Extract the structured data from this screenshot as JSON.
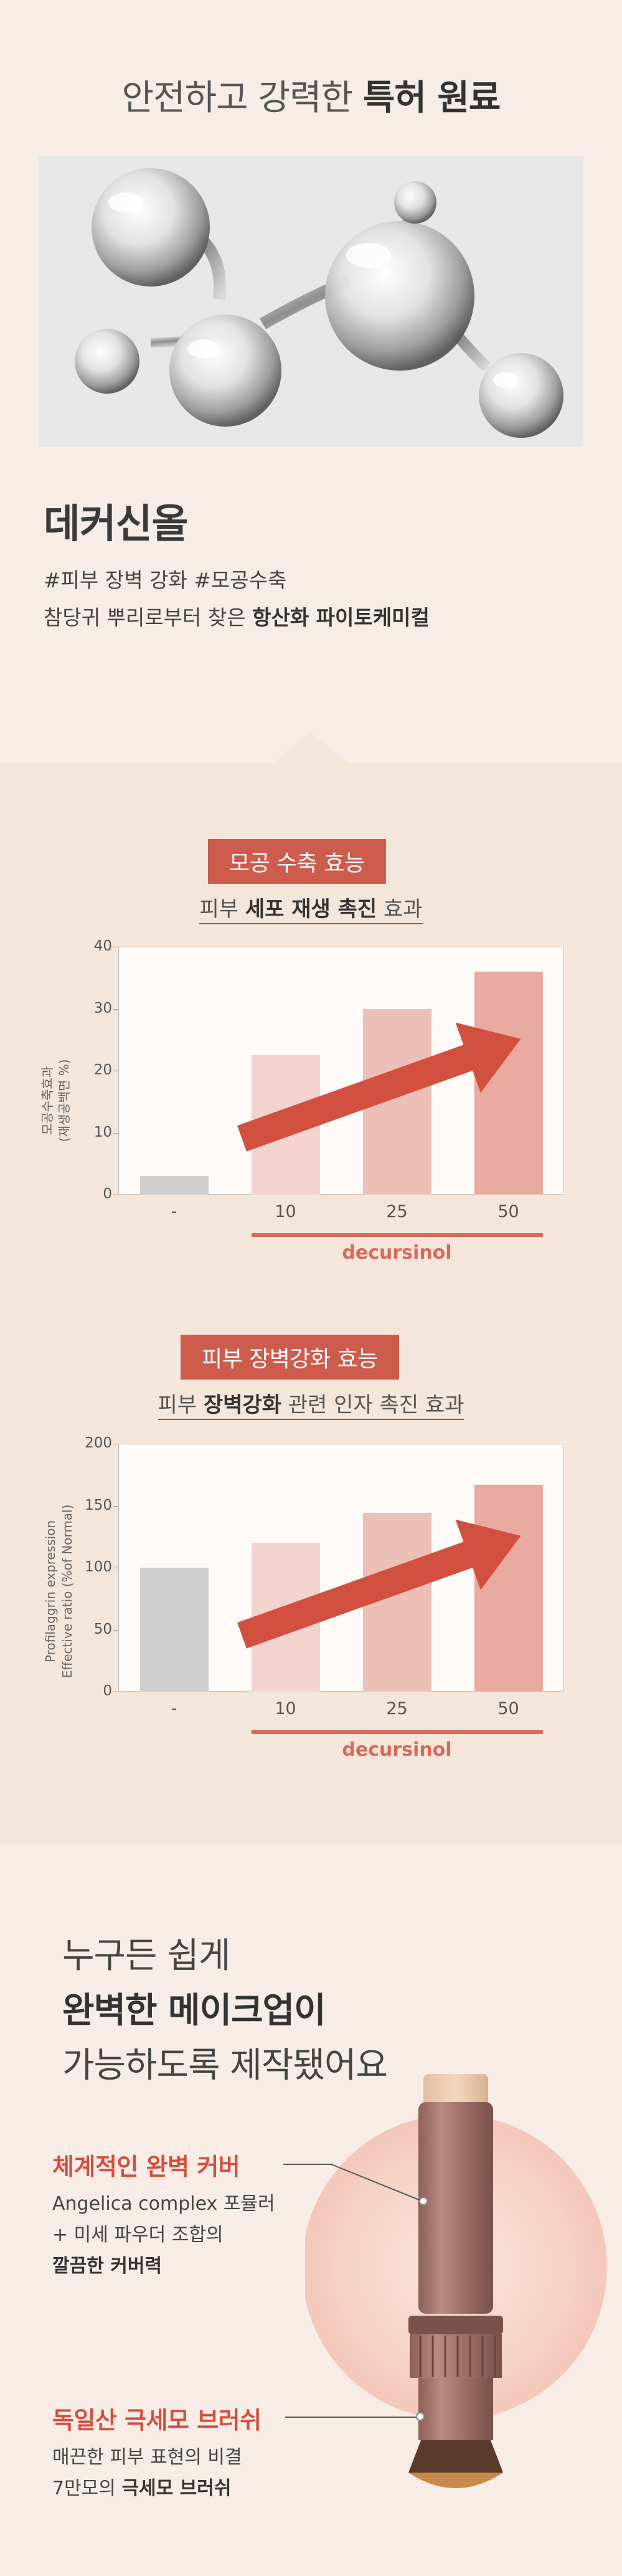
{
  "section1": {
    "title_pre": "안전하고 강력한",
    "title_bold": "특허 원료",
    "ingredient_name": "데커신올",
    "tags": "#피부 장벽 강화 #모공수축",
    "desc_pre": "참당귀 뿌리로부터 찾은",
    "desc_bold": "항산화 파이토케미컬"
  },
  "chart1": {
    "badge": "모공 수축 효능",
    "subtitle_pre": "피부",
    "subtitle_bold": "세포 재생 촉진",
    "subtitle_post": "효과",
    "ylabel_line1": "모공수축효과",
    "ylabel_line2": "(재생공백면 %)",
    "series_label": "decursinol"
  },
  "chart2": {
    "badge": "피부 장벽강화 효능",
    "subtitle_pre": "피부",
    "subtitle_bold": "장벽강화",
    "subtitle_post": "관련 인자 촉진 효과",
    "ylabel_line1": "Profilaggrin expression",
    "ylabel_line2": "Effective ratio (%of Normal)",
    "series_label": "decursinol"
  },
  "chart_data": [
    {
      "type": "bar",
      "title": "모공 수축 효능",
      "ylabel": "모공수축효과 (재생공백면 %)",
      "xlabel": "decursinol",
      "categories": [
        "-",
        "10",
        "25",
        "50"
      ],
      "values": [
        3,
        22.5,
        30,
        36
      ],
      "ylim": [
        0,
        40
      ],
      "yticks": [
        0,
        10,
        20,
        30,
        40
      ],
      "colors": [
        "#cfcfcf",
        "#f2d3ce",
        "#ecbfb7",
        "#e8aaa0"
      ],
      "grid": false
    },
    {
      "type": "bar",
      "title": "피부 장벽강화 효능",
      "ylabel": "Profilaggrin expression Effective ratio (%of Normal)",
      "xlabel": "decursinol",
      "categories": [
        "-",
        "10",
        "25",
        "50"
      ],
      "values": [
        100,
        120,
        144,
        167
      ],
      "ylim": [
        0,
        200
      ],
      "yticks": [
        0,
        50,
        100,
        150,
        200
      ],
      "colors": [
        "#cfcfcf",
        "#f2d3ce",
        "#ecbfb7",
        "#e8aaa0"
      ],
      "grid": false
    }
  ],
  "section3": {
    "head_line1": "누구든 쉽게",
    "head_line2": "완벽한 메이크업이",
    "head_line3": "가능하도록 제작됐어요",
    "feature1": {
      "title": "체계적인 완벽 커버",
      "line1": "Angelica complex 포뮬러",
      "line2": "+ 미세 파우더 조합의",
      "line3": "깔끔한 커버력"
    },
    "feature2": {
      "title": "독일산 극세모 브러쉬",
      "line1": "매끈한 피부 표현의 비결",
      "line2_pre": "7만모의",
      "line2_bold": "극세모 브러쉬"
    }
  },
  "colors": {
    "accent": "#cd5c4c",
    "bg_light": "#f7ede6",
    "bg_band": "#f5e6db",
    "bar_arrow": "#d2503f"
  }
}
